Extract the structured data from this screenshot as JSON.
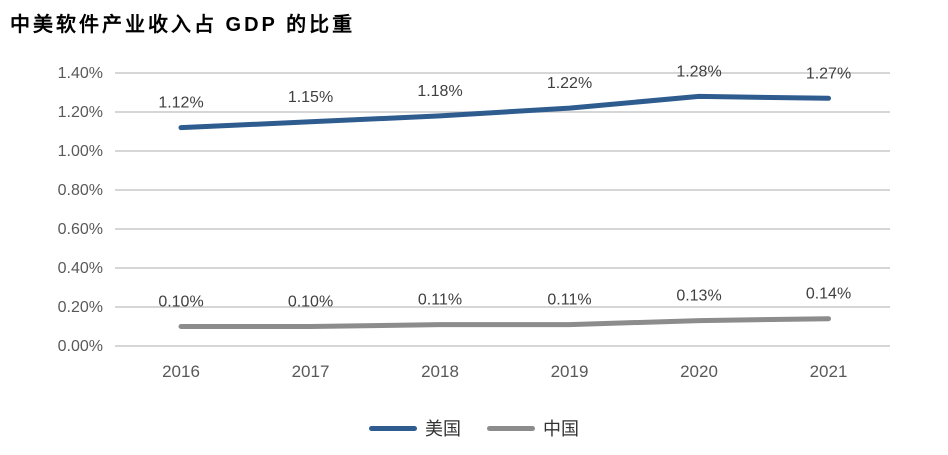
{
  "page": {
    "title": "中美软件产业收入占 GDP 的比重"
  },
  "chart_data": {
    "type": "line",
    "title": "中美软件产业收入占 GDP 的比重",
    "categories": [
      "2016",
      "2017",
      "2018",
      "2019",
      "2020",
      "2021"
    ],
    "series": [
      {
        "name": "美国",
        "color": "#2E5C8F",
        "values": [
          1.12,
          1.15,
          1.18,
          1.22,
          1.28,
          1.27
        ],
        "labels": [
          "1.12%",
          "1.15%",
          "1.18%",
          "1.22%",
          "1.28%",
          "1.27%"
        ]
      },
      {
        "name": "中国",
        "color": "#8C8C8C",
        "values": [
          0.1,
          0.1,
          0.11,
          0.11,
          0.13,
          0.14
        ],
        "labels": [
          "0.10%",
          "0.10%",
          "0.11%",
          "0.11%",
          "0.13%",
          "0.14%"
        ]
      }
    ],
    "ylim": [
      0,
      1.4
    ],
    "ytick_step": 0.2,
    "ytick_labels": [
      "0.00%",
      "0.20%",
      "0.40%",
      "0.60%",
      "0.80%",
      "1.00%",
      "1.20%",
      "1.40%"
    ],
    "grid": true,
    "legend_position": "bottom"
  },
  "colors": {
    "grid": "#C8C8C8",
    "tick_text": "#595959",
    "data_label_text": "#404040",
    "background": "#FFFFFF"
  }
}
